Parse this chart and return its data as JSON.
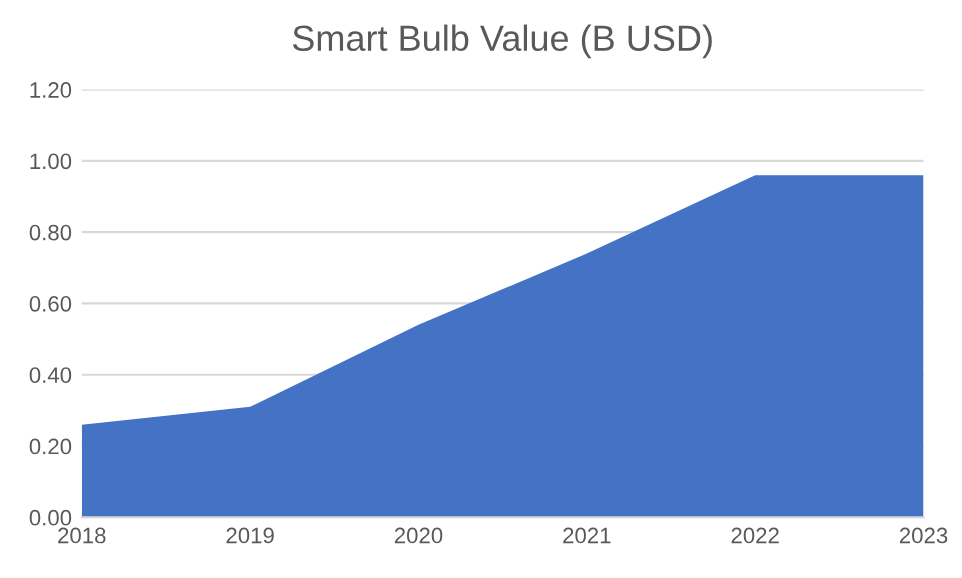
{
  "chart_data": {
    "type": "area",
    "title": "Smart Bulb Value (B USD)",
    "categories": [
      "2018",
      "2019",
      "2020",
      "2021",
      "2022",
      "2023"
    ],
    "values": [
      0.26,
      0.31,
      0.54,
      0.74,
      0.96,
      0.96
    ],
    "color": "#4472c4",
    "ylim": [
      0,
      1.2
    ],
    "yticks": [
      {
        "value": 0,
        "label": "0.00"
      },
      {
        "value": 0.2,
        "label": "0.20"
      },
      {
        "value": 0.4,
        "label": "0.40"
      },
      {
        "value": 0.6,
        "label": "0.60"
      },
      {
        "value": 0.8,
        "label": "0.80"
      },
      {
        "value": 1.0,
        "label": "1.00"
      },
      {
        "value": 1.2,
        "label": "1.20"
      }
    ],
    "grid": "y"
  }
}
